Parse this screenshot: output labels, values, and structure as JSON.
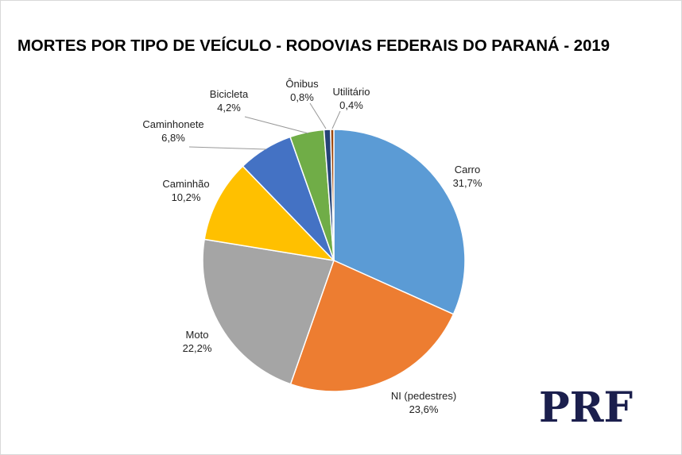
{
  "chart_data": {
    "type": "pie",
    "title": "MORTES POR TIPO DE VEÍCULO - RODOVIAS FEDERAIS DO PARANÁ - 2019",
    "categories": [
      "Carro",
      "NI (pedestres)",
      "Moto",
      "Caminhão",
      "Caminhonete",
      "Bicicleta",
      "Ônibus",
      "Utilitário"
    ],
    "values": [
      31.7,
      23.6,
      22.2,
      10.2,
      6.8,
      4.2,
      0.8,
      0.4
    ],
    "value_labels": [
      "31,7%",
      "23,6%",
      "22,2%",
      "10,2%",
      "6,8%",
      "4,2%",
      "0,8%",
      "0,4%"
    ],
    "colors": [
      "#5b9bd5",
      "#ed7d31",
      "#a5a5a5",
      "#ffc000",
      "#4472c4",
      "#70ad47",
      "#264478",
      "#9e480e"
    ]
  },
  "logo": "PRF"
}
